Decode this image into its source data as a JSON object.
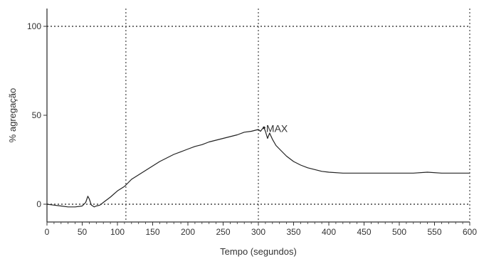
{
  "chart_data": {
    "type": "line",
    "title": "",
    "xlabel": "Tempo (segundos)",
    "ylabel": "% agregação",
    "xlim": [
      0,
      600
    ],
    "ylim": [
      -10,
      110
    ],
    "x_ticks": [
      0,
      50,
      100,
      150,
      200,
      250,
      300,
      350,
      400,
      450,
      500,
      550,
      600
    ],
    "y_ticks": [
      0,
      50,
      100
    ],
    "grid": "dotted",
    "vertical_markers": [
      112,
      300,
      600
    ],
    "horizontal_markers": [
      0,
      100
    ],
    "annotation": {
      "label": "MAX",
      "x": 308,
      "y": 43
    },
    "series": [
      {
        "x": [
          0,
          10,
          20,
          30,
          40,
          50,
          55,
          58,
          60,
          63,
          67,
          70,
          75,
          80,
          90,
          100,
          110,
          115,
          120,
          130,
          140,
          150,
          160,
          170,
          180,
          190,
          200,
          210,
          220,
          230,
          240,
          250,
          260,
          270,
          280,
          290,
          300,
          303,
          306,
          308,
          310,
          313,
          316,
          320,
          325,
          330,
          340,
          350,
          360,
          370,
          380,
          390,
          400,
          420,
          440,
          460,
          480,
          500,
          520,
          540,
          560,
          580,
          600
        ],
        "y": [
          0,
          -0.5,
          -1,
          -1.5,
          -1.5,
          -1,
          1,
          4.5,
          3,
          -0.5,
          -1.5,
          -1,
          -0.5,
          1,
          4,
          7.5,
          10,
          12,
          14,
          16.5,
          19,
          21.5,
          24,
          26,
          28,
          29.5,
          31,
          32.5,
          33.5,
          35,
          36,
          37,
          38,
          39,
          40.5,
          41,
          42,
          41,
          42.5,
          43,
          41,
          37,
          40,
          36.5,
          33,
          31,
          27,
          24,
          22,
          20.5,
          19.5,
          18.5,
          18,
          17.5,
          17.5,
          17.5,
          17.5,
          17.5,
          17.5,
          18,
          17.5,
          17.5,
          17.5
        ]
      }
    ]
  }
}
